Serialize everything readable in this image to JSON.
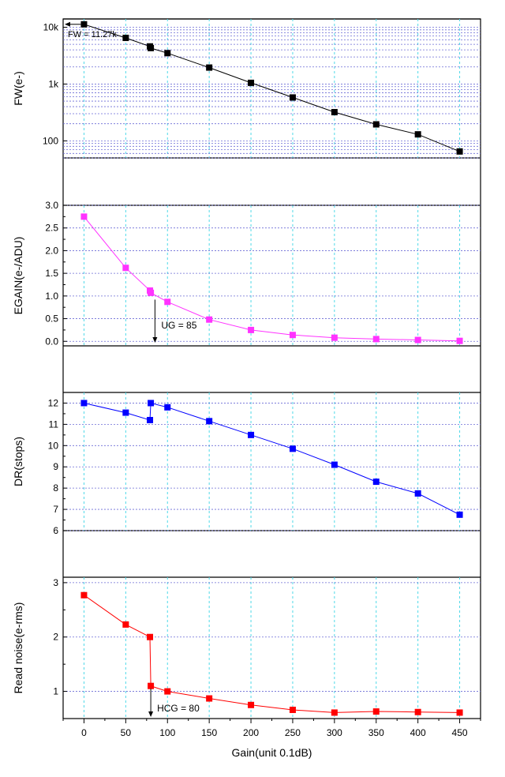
{
  "x_axis": {
    "label": "Gain(unit 0.1dB)",
    "range": [
      -25,
      475
    ],
    "ticks": [
      0,
      50,
      100,
      150,
      200,
      250,
      300,
      350,
      400,
      450
    ],
    "tick_labels": [
      "0",
      "50",
      "100",
      "150",
      "200",
      "250",
      "300",
      "350",
      "400",
      "450"
    ]
  },
  "chart_data": [
    {
      "type": "line",
      "ylabel": "FW(e-)",
      "scale": "log",
      "ylim": [
        50,
        14000
      ],
      "yticks": [
        10000,
        1000,
        100
      ],
      "ytick_labels": [
        "10k",
        "1k",
        "100"
      ],
      "grid": true,
      "color": "#000000",
      "series": [
        {
          "x": [
            0,
            50,
            79,
            80,
            100,
            150,
            200,
            250,
            300,
            350,
            400,
            450
          ],
          "y": [
            11270,
            6500,
            4600,
            4300,
            3500,
            1950,
            1050,
            580,
            320,
            195,
            130,
            65
          ]
        }
      ],
      "annotations": [
        {
          "text": "FW = 11.27k",
          "x": 0,
          "y": 11270,
          "arrow": "left"
        }
      ]
    },
    {
      "type": "line",
      "ylabel": "EGAIN(e-/ADU)",
      "scale": "linear",
      "ylim": [
        -0.1,
        3.0
      ],
      "yticks": [
        0.0,
        0.5,
        1.0,
        1.5,
        2.0,
        2.5,
        3.0
      ],
      "ytick_labels": [
        "0.0",
        "0.5",
        "1.0",
        "1.5",
        "2.0",
        "2.5",
        "3.0"
      ],
      "grid": true,
      "color": "#ff33ff",
      "series": [
        {
          "x": [
            0,
            50,
            79,
            80,
            100,
            150,
            200,
            250,
            300,
            350,
            400,
            450
          ],
          "y": [
            2.75,
            1.62,
            1.12,
            1.07,
            0.87,
            0.48,
            0.25,
            0.14,
            0.08,
            0.05,
            0.03,
            0.01
          ]
        }
      ],
      "annotations": [
        {
          "text": "UG = 85",
          "x": 85,
          "arrow": "down"
        }
      ]
    },
    {
      "type": "line",
      "ylabel": "DR(stops)",
      "scale": "linear",
      "ylim": [
        6,
        12.5
      ],
      "yticks": [
        6,
        7,
        8,
        9,
        10,
        11,
        12
      ],
      "ytick_labels": [
        "6",
        "7",
        "8",
        "9",
        "10",
        "11",
        "12"
      ],
      "grid": true,
      "color": "#0000ff",
      "series": [
        {
          "x": [
            0,
            50,
            79,
            80,
            100,
            150,
            200,
            250,
            300,
            350,
            400,
            450
          ],
          "y": [
            12.0,
            11.55,
            11.2,
            12.0,
            11.8,
            11.15,
            10.5,
            9.85,
            9.1,
            8.3,
            7.75,
            6.75
          ]
        }
      ],
      "annotations": []
    },
    {
      "type": "line",
      "ylabel": "Read noise(e-rms)",
      "scale": "linear",
      "ylim": [
        0.5,
        3.1
      ],
      "yticks": [
        1,
        2,
        3
      ],
      "ytick_labels": [
        "1",
        "2",
        "3"
      ],
      "grid": true,
      "color": "#ff0000",
      "series": [
        {
          "x": [
            0,
            50,
            79,
            80,
            100,
            150,
            200,
            250,
            300,
            350,
            400,
            450
          ],
          "y": [
            2.77,
            2.23,
            2.0,
            1.1,
            1.0,
            0.87,
            0.75,
            0.66,
            0.61,
            0.63,
            0.62,
            0.61
          ]
        }
      ],
      "annotations": [
        {
          "text": "HCG = 80",
          "x": 80,
          "arrow": "down"
        }
      ]
    }
  ]
}
